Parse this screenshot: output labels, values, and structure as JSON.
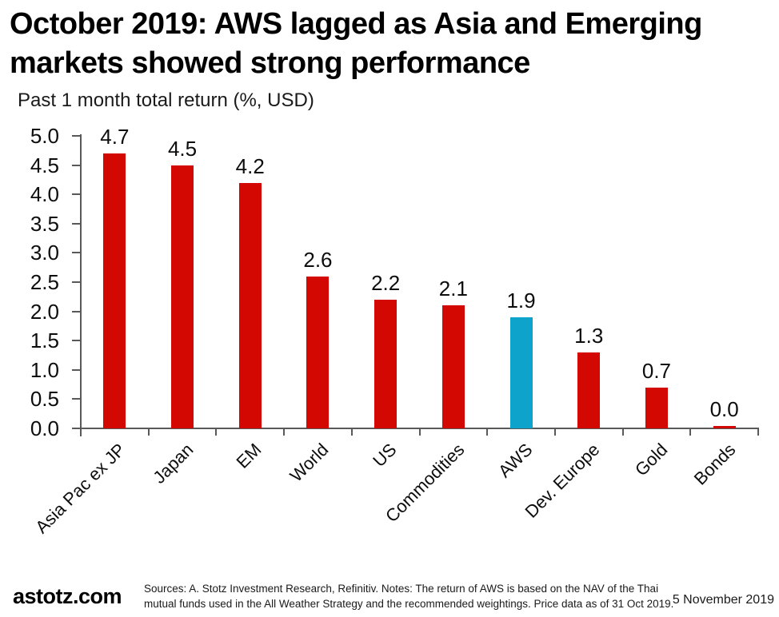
{
  "header": {
    "title_line1": "October 2019: AWS lagged as Asia and Emerging",
    "title_line2": "markets showed strong performance",
    "subtitle": "Past 1 month total return (%, USD)"
  },
  "chart_data": {
    "type": "bar",
    "title": "October 2019: AWS lagged as Asia and Emerging markets showed strong performance",
    "ylabel": "Past 1 month total return (%, USD)",
    "xlabel": "",
    "categories": [
      "Asia Pac ex JP",
      "Japan",
      "EM",
      "World",
      "US",
      "Commodities",
      "AWS",
      "Dev. Europe",
      "Gold",
      "Bonds"
    ],
    "values": [
      4.7,
      4.5,
      4.2,
      2.6,
      2.2,
      2.1,
      1.9,
      1.3,
      0.7,
      0.0
    ],
    "highlight_category": "AWS",
    "highlight_index": 6,
    "bar_color": "#d30803",
    "highlight_color": "#0da3cb",
    "axis_color": "#595959",
    "ylim": [
      0.0,
      5.0
    ],
    "ytick_step": 0.5,
    "grid": false,
    "legend": "none",
    "value_labels": true,
    "value_label_format": "one_decimal"
  },
  "footer": {
    "brand": "astotz.com",
    "sources_line1": "Sources: A. Stotz Investment Research, Refinitiv. Notes: The return of AWS is based on the NAV of the Thai",
    "sources_line2": "mutual funds used in the All Weather Strategy and the recommended weightings. Price data as of 31 Oct 2019.",
    "date": "5 November 2019"
  }
}
